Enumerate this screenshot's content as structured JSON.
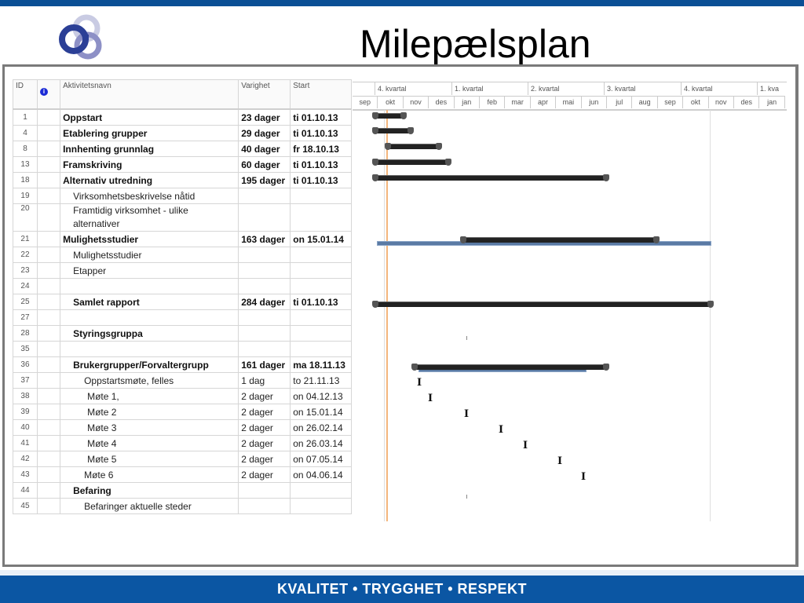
{
  "slide": {
    "title": "Milepælsplan",
    "footer": "KVALITET • TRYGGHET • RESPEKT",
    "colors": {
      "brand_blue": "#0b4f95",
      "footer_blue": "#0b56a3",
      "bar": "#222222",
      "baseline_bar": "#5a7aa4",
      "today_line": "#f4b67c"
    }
  },
  "table": {
    "headers": {
      "id": "ID",
      "indicator": "info-icon",
      "name": "Aktivitetsnavn",
      "duration": "Varighet",
      "start": "Start"
    },
    "rows": [
      {
        "id": "1",
        "name": "Oppstart",
        "duration": "23 dager",
        "start": "ti 01.10.13",
        "bold": true,
        "indent": 0
      },
      {
        "id": "4",
        "name": "Etablering grupper",
        "duration": "29 dager",
        "start": "ti 01.10.13",
        "bold": true,
        "indent": 0
      },
      {
        "id": "8",
        "name": "Innhenting grunnlag",
        "duration": "40 dager",
        "start": "fr 18.10.13",
        "bold": true,
        "indent": 0
      },
      {
        "id": "13",
        "name": "Framskriving",
        "duration": "60 dager",
        "start": "ti 01.10.13",
        "bold": true,
        "indent": 0
      },
      {
        "id": "18",
        "name": "Alternativ utredning",
        "duration": "195 dager",
        "start": "ti 01.10.13",
        "bold": true,
        "indent": 0
      },
      {
        "id": "19",
        "name": "Virksomhetsbeskrivelse nåtid",
        "duration": "",
        "start": "",
        "bold": false,
        "indent": 1
      },
      {
        "id": "20",
        "name": "Framtidig virksomhet - ulike alternativer",
        "duration": "",
        "start": "",
        "bold": false,
        "indent": 1
      },
      {
        "id": "21",
        "name": "Mulighetsstudier",
        "duration": "163 dager",
        "start": "on 15.01.14",
        "bold": true,
        "indent": 0
      },
      {
        "id": "22",
        "name": "Mulighetsstudier",
        "duration": "",
        "start": "",
        "bold": false,
        "indent": 1
      },
      {
        "id": "23",
        "name": "Etapper",
        "duration": "",
        "start": "",
        "bold": false,
        "indent": 1
      },
      {
        "id": "24",
        "name": "",
        "duration": "",
        "start": "",
        "bold": false,
        "indent": 0
      },
      {
        "id": "25",
        "name": "Samlet rapport",
        "duration": "284 dager",
        "start": "ti 01.10.13",
        "bold": true,
        "indent": 1
      },
      {
        "id": "27",
        "name": "",
        "duration": "",
        "start": "",
        "bold": false,
        "indent": 0
      },
      {
        "id": "28",
        "name": "Styringsgruppa",
        "duration": "",
        "start": "",
        "bold": true,
        "indent": 1
      },
      {
        "id": "35",
        "name": "",
        "duration": "",
        "start": "",
        "bold": false,
        "indent": 0
      },
      {
        "id": "36",
        "name": "Brukergrupper/Forvaltergrupp",
        "duration": "161 dager",
        "start": "ma 18.11.13",
        "bold": true,
        "indent": 1
      },
      {
        "id": "37",
        "name": "Oppstartsmøte, felles",
        "duration": "1 dag",
        "start": "to 21.11.13",
        "bold": false,
        "indent": 2
      },
      {
        "id": "38",
        "name": "Møte 1,",
        "duration": "2 dager",
        "start": "on 04.12.13",
        "bold": false,
        "indent": 3
      },
      {
        "id": "39",
        "name": "Møte 2",
        "duration": "2 dager",
        "start": "on 15.01.14",
        "bold": false,
        "indent": 3
      },
      {
        "id": "40",
        "name": "Møte 3",
        "duration": "2 dager",
        "start": "on 26.02.14",
        "bold": false,
        "indent": 3
      },
      {
        "id": "41",
        "name": "Møte 4",
        "duration": "2 dager",
        "start": "on 26.03.14",
        "bold": false,
        "indent": 3
      },
      {
        "id": "42",
        "name": "Møte 5",
        "duration": "2 dager",
        "start": "on 07.05.14",
        "bold": false,
        "indent": 3
      },
      {
        "id": "43",
        "name": "Møte 6",
        "duration": "2 dager",
        "start": "on 04.06.14",
        "bold": false,
        "indent": 2
      },
      {
        "id": "44",
        "name": "Befaring",
        "duration": "",
        "start": "",
        "bold": true,
        "indent": 1
      },
      {
        "id": "45",
        "name": "Befaringer aktuelle steder",
        "duration": "",
        "start": "",
        "bold": false,
        "indent": 2
      }
    ]
  },
  "timescale": {
    "quarters": [
      "",
      "4. kvartal",
      "1. kvartal",
      "2. kvartal",
      "3. kvartal",
      "4. kvartal",
      "1. kva"
    ],
    "months": [
      "sep",
      "okt",
      "nov",
      "des",
      "jan",
      "feb",
      "mar",
      "apr",
      "mai",
      "jun",
      "jul",
      "aug",
      "sep",
      "okt",
      "nov",
      "des",
      "jan"
    ]
  }
}
